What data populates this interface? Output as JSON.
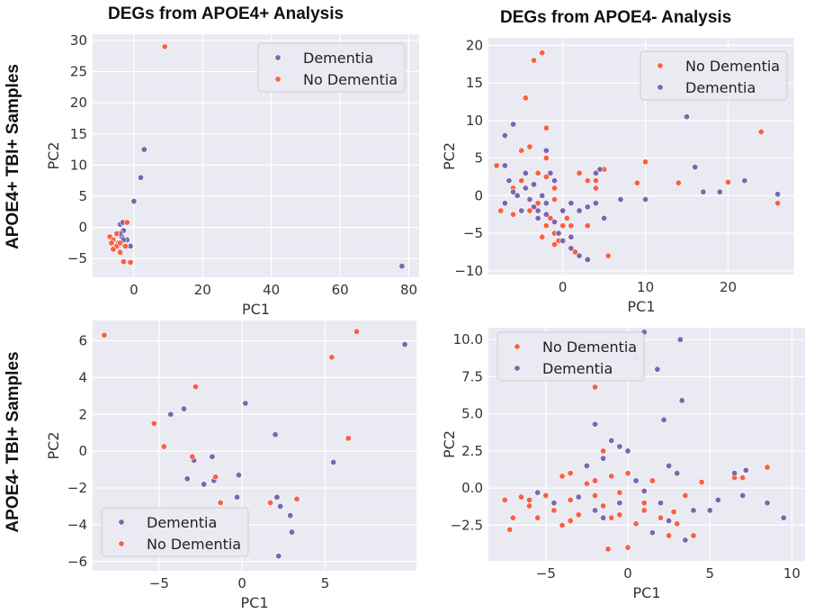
{
  "column_titles": [
    "DEGs from APOE4+ Analysis",
    "DEGs from APOE4- Analysis"
  ],
  "row_labels": [
    "APOE4+ TBI+ Samples",
    "APOE4- TBI+ Samples"
  ],
  "colors": {
    "dementia": "#7b66b0",
    "no_dementia": "#fa6041",
    "plot_bg": "#eaeaf2",
    "grid": "#ffffff"
  },
  "chart_data": [
    {
      "type": "scatter",
      "title": "",
      "xlabel": "PC1",
      "ylabel": "PC2",
      "xlim": [
        -12,
        83
      ],
      "ylim": [
        -8,
        31
      ],
      "xticks": [
        0,
        20,
        40,
        60,
        80
      ],
      "yticks": [
        -5,
        0,
        5,
        10,
        15,
        20,
        25,
        30
      ],
      "grid": true,
      "legend_position": "top-right",
      "series": [
        {
          "name": "Dementia",
          "color": "#7b66b0",
          "points": [
            [
              -4,
              0.5
            ],
            [
              -3,
              -0.5
            ],
            [
              -3.5,
              -1.5
            ],
            [
              -2,
              -2
            ],
            [
              -1,
              -3
            ],
            [
              -4,
              -1
            ],
            [
              -3,
              -2
            ],
            [
              -4.5,
              -2.5
            ],
            [
              0,
              4.2
            ],
            [
              2,
              8
            ],
            [
              3,
              12.5
            ],
            [
              78,
              -6.2
            ],
            [
              -3.2,
              0.8
            ]
          ]
        },
        {
          "name": "No Dementia",
          "color": "#fa6041",
          "points": [
            [
              9,
              29
            ],
            [
              -7,
              -1.5
            ],
            [
              -6,
              -2
            ],
            [
              -5,
              -3
            ],
            [
              -6,
              -3.5
            ],
            [
              -4,
              -4
            ],
            [
              -3,
              -5.5
            ],
            [
              -1,
              -5.6
            ],
            [
              -2,
              0.8
            ],
            [
              -5,
              -1
            ],
            [
              -4,
              -2.5
            ],
            [
              -6.5,
              -2.5
            ],
            [
              -2.5,
              -3
            ]
          ]
        }
      ]
    },
    {
      "type": "scatter",
      "title": "",
      "xlabel": "PC1",
      "ylabel": "PC2",
      "xlim": [
        -9,
        28
      ],
      "ylim": [
        -10.5,
        21
      ],
      "xticks": [
        0,
        10,
        20
      ],
      "yticks": [
        -10,
        -5,
        0,
        5,
        10,
        15,
        20
      ],
      "grid": true,
      "legend_position": "top-right",
      "series": [
        {
          "name": "No Dementia",
          "color": "#fa6041",
          "points": [
            [
              -8,
              4
            ],
            [
              -7.5,
              -2
            ],
            [
              -6,
              1
            ],
            [
              -5,
              6
            ],
            [
              -4.5,
              13
            ],
            [
              -3.5,
              18
            ],
            [
              -2.5,
              19
            ],
            [
              -2,
              9
            ],
            [
              -4,
              6.5
            ],
            [
              -3,
              3
            ],
            [
              -2,
              2.5
            ],
            [
              -1,
              1
            ],
            [
              -1,
              -0.5
            ],
            [
              -3,
              -1
            ],
            [
              -1.5,
              -3
            ],
            [
              -1,
              -5
            ],
            [
              -2,
              -4
            ],
            [
              -0.5,
              -6
            ],
            [
              0,
              -4
            ],
            [
              0.5,
              -3
            ],
            [
              1,
              -4
            ],
            [
              -1,
              -6.5
            ],
            [
              1.5,
              -7.5
            ],
            [
              2,
              3
            ],
            [
              3,
              2
            ],
            [
              4,
              1
            ],
            [
              4,
              2
            ],
            [
              5,
              3.5
            ],
            [
              3,
              -4
            ],
            [
              5.5,
              -8
            ],
            [
              9,
              1.7
            ],
            [
              10,
              4.5
            ],
            [
              14,
              1.7
            ],
            [
              17,
              0.5
            ],
            [
              20,
              1.8
            ],
            [
              24,
              8.5
            ],
            [
              26,
              -1
            ],
            [
              -4,
              -2
            ],
            [
              -6,
              -2.5
            ],
            [
              -2.5,
              -5.5
            ],
            [
              -2,
              5
            ],
            [
              -5,
              2
            ]
          ]
        },
        {
          "name": "Dementia",
          "color": "#7b66b0",
          "points": [
            [
              -7,
              4
            ],
            [
              -6.5,
              2
            ],
            [
              -7,
              -1
            ],
            [
              -6,
              0.5
            ],
            [
              -5,
              -2
            ],
            [
              -4.5,
              1
            ],
            [
              -3.5,
              1.5
            ],
            [
              -3,
              -2
            ],
            [
              -2.5,
              0
            ],
            [
              -2,
              -1
            ],
            [
              -1,
              2
            ],
            [
              -1.5,
              3
            ],
            [
              -2,
              6
            ],
            [
              -6,
              9.5
            ],
            [
              -7,
              8
            ],
            [
              -4.5,
              3
            ],
            [
              -5.5,
              0
            ],
            [
              -3.5,
              -1.5
            ],
            [
              -2,
              -2.5
            ],
            [
              -1,
              -3.5
            ],
            [
              -0.5,
              -5
            ],
            [
              0,
              -6
            ],
            [
              1,
              -7
            ],
            [
              2,
              -8
            ],
            [
              3,
              -8.5
            ],
            [
              1,
              -1
            ],
            [
              2,
              -2
            ],
            [
              3,
              -1.5
            ],
            [
              4,
              -1
            ],
            [
              5,
              -3
            ],
            [
              7,
              -0.5
            ],
            [
              4,
              3
            ],
            [
              4.5,
              3.5
            ],
            [
              10,
              -0.5
            ],
            [
              15,
              10.5
            ],
            [
              16,
              3.8
            ],
            [
              17,
              0.5
            ],
            [
              19,
              0.5
            ],
            [
              22,
              2
            ],
            [
              26,
              0.2
            ],
            [
              -3,
              -3
            ],
            [
              0,
              -2
            ],
            [
              1,
              -5.5
            ],
            [
              -4,
              -0.5
            ]
          ]
        }
      ]
    },
    {
      "type": "scatter",
      "title": "",
      "xlabel": "PC1",
      "ylabel": "PC2",
      "xlim": [
        -9,
        10.5
      ],
      "ylim": [
        -6.5,
        7.1
      ],
      "xticks": [
        -5,
        0,
        5
      ],
      "yticks": [
        -6,
        -4,
        -2,
        0,
        2,
        4,
        6
      ],
      "grid": true,
      "legend_position": "bottom-left",
      "series": [
        {
          "name": "Dementia",
          "color": "#7b66b0",
          "points": [
            [
              -4.3,
              2
            ],
            [
              -3.5,
              2.3
            ],
            [
              -3.3,
              -1.5
            ],
            [
              -2.9,
              -0.5
            ],
            [
              -2.3,
              -1.8
            ],
            [
              -1.8,
              -0.3
            ],
            [
              -1.7,
              -1.6
            ],
            [
              -0.3,
              -2.5
            ],
            [
              -0.2,
              -1.3
            ],
            [
              0.2,
              2.6
            ],
            [
              2,
              0.9
            ],
            [
              2.1,
              -2.5
            ],
            [
              2.3,
              -3
            ],
            [
              2.9,
              -3.5
            ],
            [
              3,
              -4.4
            ],
            [
              5.5,
              -0.6
            ],
            [
              9.8,
              5.8
            ],
            [
              2.2,
              -5.7
            ]
          ]
        },
        {
          "name": "No Dementia",
          "color": "#fa6041",
          "points": [
            [
              -8.3,
              6.3
            ],
            [
              -5.3,
              1.5
            ],
            [
              -4.7,
              0.25
            ],
            [
              -3,
              -0.3
            ],
            [
              -2.8,
              3.5
            ],
            [
              -1.6,
              -1.4
            ],
            [
              -1.3,
              -2.8
            ],
            [
              1.7,
              -2.8
            ],
            [
              3.3,
              -2.6
            ],
            [
              5.4,
              5.1
            ],
            [
              6.4,
              0.7
            ],
            [
              6.9,
              6.5
            ]
          ]
        }
      ]
    },
    {
      "type": "scatter",
      "title": "",
      "xlabel": "PC1",
      "ylabel": "PC2",
      "xlim": [
        -8.5,
        10.8
      ],
      "ylim": [
        -4.9,
        10.8
      ],
      "xticks": [
        -5,
        0,
        5,
        10
      ],
      "yticks": [
        -2.5,
        0.0,
        2.5,
        5.0,
        7.5,
        10.0
      ],
      "grid": true,
      "legend_position": "top-left",
      "series": [
        {
          "name": "No Dementia",
          "color": "#fa6041",
          "points": [
            [
              -7.5,
              -0.8
            ],
            [
              -7.2,
              -2.8
            ],
            [
              -6.5,
              -0.6
            ],
            [
              -6,
              -1.2
            ],
            [
              -5.5,
              -2
            ],
            [
              -5,
              -0.5
            ],
            [
              -4.5,
              -1.5
            ],
            [
              -4,
              -2.5
            ],
            [
              -3.5,
              1
            ],
            [
              -3.5,
              -0.8
            ],
            [
              -3,
              -1.8
            ],
            [
              -2.5,
              0.3
            ],
            [
              -2,
              6.8
            ],
            [
              -2,
              -0.5
            ],
            [
              -1.5,
              2.5
            ],
            [
              -1.5,
              -1.2
            ],
            [
              -1,
              0.8
            ],
            [
              -1,
              -2
            ],
            [
              -0.5,
              -0.3
            ],
            [
              -0.5,
              -1.8
            ],
            [
              0,
              -4
            ],
            [
              0,
              1
            ],
            [
              0.5,
              -2.4
            ],
            [
              1,
              -1
            ],
            [
              1.5,
              0.5
            ],
            [
              2,
              -2
            ],
            [
              2.5,
              -3.2
            ],
            [
              3,
              -2.4
            ],
            [
              3.5,
              -0.5
            ],
            [
              4,
              -3.2
            ],
            [
              4.5,
              0.4
            ],
            [
              6.5,
              0.7
            ],
            [
              7,
              0.7
            ],
            [
              8.5,
              1.4
            ],
            [
              8.5,
              -1
            ],
            [
              -7,
              -2
            ],
            [
              -4,
              0.8
            ],
            [
              -6,
              -0.8
            ],
            [
              -2,
              0.5
            ],
            [
              1,
              -1.5
            ],
            [
              -3.5,
              -2.2
            ],
            [
              2.8,
              -1.6
            ],
            [
              -1.2,
              -4.1
            ]
          ]
        },
        {
          "name": "Dementia",
          "color": "#7b66b0",
          "points": [
            [
              -5.5,
              -0.3
            ],
            [
              -4.5,
              -1
            ],
            [
              -3,
              -0.6
            ],
            [
              -2.5,
              1.5
            ],
            [
              -2,
              4.3
            ],
            [
              -1.5,
              2
            ],
            [
              -1,
              3.2
            ],
            [
              -0.5,
              2.8
            ],
            [
              0,
              2.5
            ],
            [
              0.5,
              8.8
            ],
            [
              1,
              10.5
            ],
            [
              1.8,
              8
            ],
            [
              2,
              -1
            ],
            [
              2.2,
              4.6
            ],
            [
              2.5,
              -2.2
            ],
            [
              3,
              1
            ],
            [
              3.2,
              10
            ],
            [
              3.3,
              5.9
            ],
            [
              3.5,
              -3.5
            ],
            [
              4,
              -1.5
            ],
            [
              5,
              -1.5
            ],
            [
              5.5,
              -0.8
            ],
            [
              6.5,
              1
            ],
            [
              7,
              -0.5
            ],
            [
              7.2,
              1.2
            ],
            [
              8.5,
              -1
            ],
            [
              9.5,
              -2
            ],
            [
              1.5,
              -3
            ],
            [
              -1.5,
              -2
            ],
            [
              0.5,
              0.5
            ],
            [
              2.5,
              1.5
            ],
            [
              -2,
              -1.5
            ],
            [
              -0.5,
              -1
            ],
            [
              1,
              -0.2
            ]
          ]
        }
      ]
    }
  ]
}
